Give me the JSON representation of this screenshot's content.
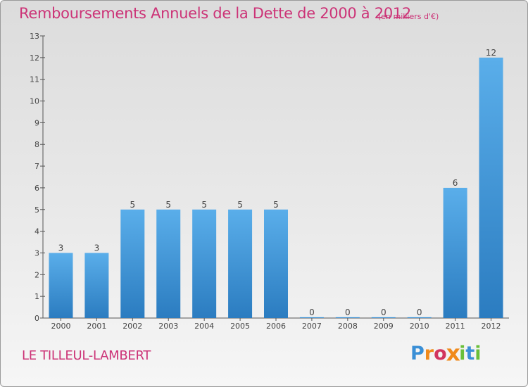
{
  "chart_data": {
    "type": "bar",
    "title": "Remboursements Annuels de la Dette de 2000 à 2012",
    "subtitle": "(en milliers d'€)",
    "categories": [
      "2000",
      "2001",
      "2002",
      "2003",
      "2004",
      "2005",
      "2006",
      "2007",
      "2008",
      "2009",
      "2010",
      "2011",
      "2012"
    ],
    "values": [
      3,
      3,
      5,
      5,
      5,
      5,
      5,
      0,
      0,
      0,
      0,
      6,
      12
    ],
    "data_labels": [
      "3",
      "3",
      "5",
      "5",
      "5",
      "5",
      "5",
      "0",
      "0",
      "0",
      "0",
      "6",
      "12"
    ],
    "y_ticks": [
      "0",
      "1",
      "2",
      "3",
      "4",
      "5",
      "6",
      "7",
      "8",
      "9",
      "10",
      "11",
      "12",
      "13"
    ],
    "ylim": [
      0,
      13
    ],
    "xlabel": "",
    "ylabel": "",
    "grid": false,
    "bar_color": "#4a9ee0",
    "title_color": "#cc3377"
  },
  "footer": {
    "commune": "LE TILLEUL-LAMBERT",
    "logo": {
      "text": "Proxiti",
      "letters": [
        "P",
        "r",
        "o",
        "x",
        "i",
        "t",
        "i"
      ],
      "colors": [
        "#3a8fd6",
        "#f08a1c",
        "#d2355f",
        "#f08a1c",
        "#6abf3a",
        "#3a8fd6",
        "#6abf3a"
      ]
    }
  }
}
